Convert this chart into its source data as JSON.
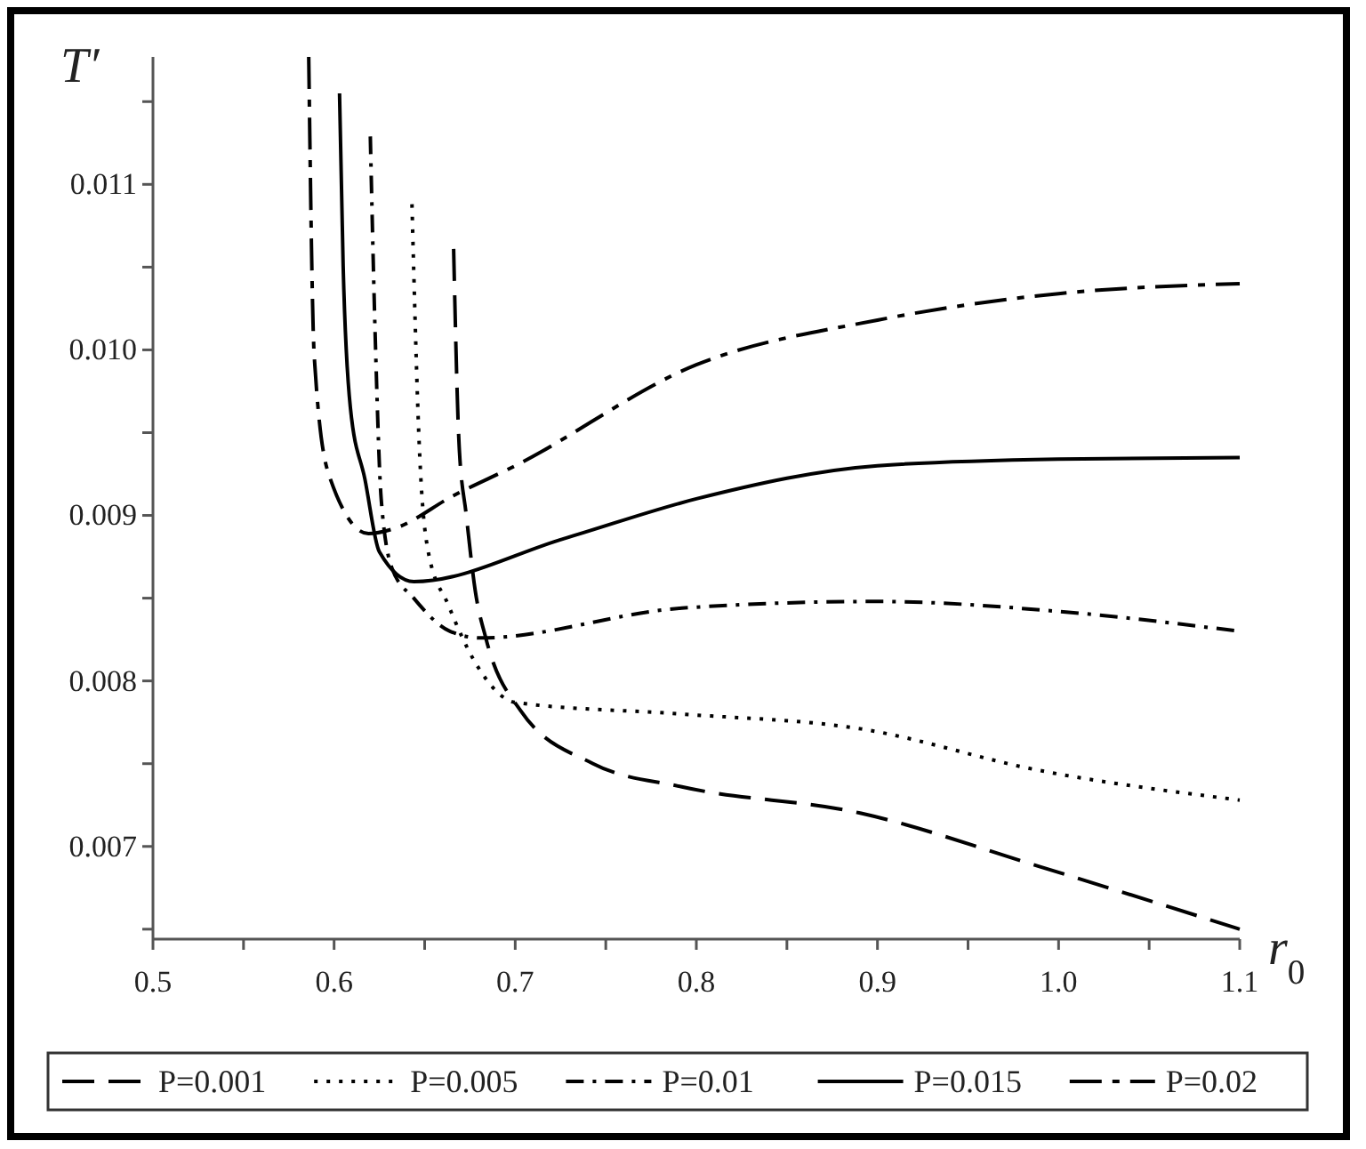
{
  "chart_data": {
    "type": "line",
    "xlabel": "r$_{0}$",
    "ylabel": "T′",
    "xlim": [
      0.5,
      1.1
    ],
    "ylim": [
      0.00644,
      0.01177
    ],
    "xticks": [
      0.5,
      {
        "value": 0.55,
        "label": null
      },
      0.6,
      {
        "value": 0.65,
        "label": null
      },
      0.7,
      {
        "value": 0.75,
        "label": null
      },
      0.8,
      {
        "value": 0.85,
        "label": null
      },
      0.9,
      {
        "value": 0.95,
        "label": null
      },
      {
        "value": 1.0,
        "label": "1.0"
      },
      {
        "value": 1.05,
        "label": null
      },
      1.1
    ],
    "yticks": [
      {
        "value": 0.0065,
        "label": null
      },
      0.007,
      {
        "value": 0.0075,
        "label": null
      },
      0.008,
      {
        "value": 0.0085,
        "label": null
      },
      0.009,
      {
        "value": 0.0095,
        "label": null
      },
      {
        "value": 0.01,
        "label": "0.010"
      },
      {
        "value": 0.0105,
        "label": null
      },
      0.011,
      {
        "value": 0.0115,
        "label": null
      }
    ],
    "grid": false,
    "legend": "bottom",
    "series": [
      {
        "name": "P=0.001",
        "color": "#000000",
        "line_style": "dashed",
        "x": [
          0.666,
          0.669,
          0.673,
          0.678,
          0.684,
          0.703,
          0.743,
          0.792,
          0.891,
          0.989,
          1.1
        ],
        "values": [
          0.01061,
          0.00943,
          0.009,
          0.00854,
          0.00825,
          0.00782,
          0.0075,
          0.00736,
          0.0072,
          0.00688,
          0.0065
        ]
      },
      {
        "name": "P=0.005",
        "color": "#000000",
        "line_style": "dotted",
        "x": [
          0.643,
          0.647,
          0.652,
          0.663,
          0.678,
          0.7,
          0.792,
          0.891,
          0.989,
          1.1
        ],
        "values": [
          0.01088,
          0.00943,
          0.00878,
          0.00846,
          0.00811,
          0.00787,
          0.0078,
          0.00771,
          0.00746,
          0.00728
        ]
      },
      {
        "name": "P=0.01",
        "color": "#000000",
        "line_style": "dashdot",
        "x": [
          0.62,
          0.623,
          0.626,
          0.632,
          0.644,
          0.664,
          0.681,
          0.792,
          0.9,
          1.0,
          1.1
        ],
        "values": [
          0.01129,
          0.00997,
          0.0091,
          0.00868,
          0.0085,
          0.0083,
          0.00826,
          0.00844,
          0.00848,
          0.00842,
          0.0083
        ]
      },
      {
        "name": "P=0.015",
        "color": "#000000",
        "line_style": "solid",
        "x": [
          0.603,
          0.605,
          0.609,
          0.617,
          0.625,
          0.644,
          0.727,
          0.8,
          0.9,
          1.0,
          1.1
        ],
        "values": [
          0.01155,
          0.01051,
          0.00965,
          0.00922,
          0.00878,
          0.0086,
          0.00886,
          0.0091,
          0.0093,
          0.00934,
          0.00935
        ]
      },
      {
        "name": "P=0.02",
        "color": "#000000",
        "line_style": "longdashdot",
        "x": [
          0.586,
          0.589,
          0.597,
          0.619,
          0.633,
          0.666,
          0.7,
          0.8,
          0.9,
          1.0,
          1.1
        ],
        "values": [
          0.01177,
          0.00997,
          0.00925,
          0.00889,
          0.00892,
          0.00912,
          0.0093,
          0.00991,
          0.01018,
          0.01034,
          0.0104
        ]
      }
    ]
  }
}
